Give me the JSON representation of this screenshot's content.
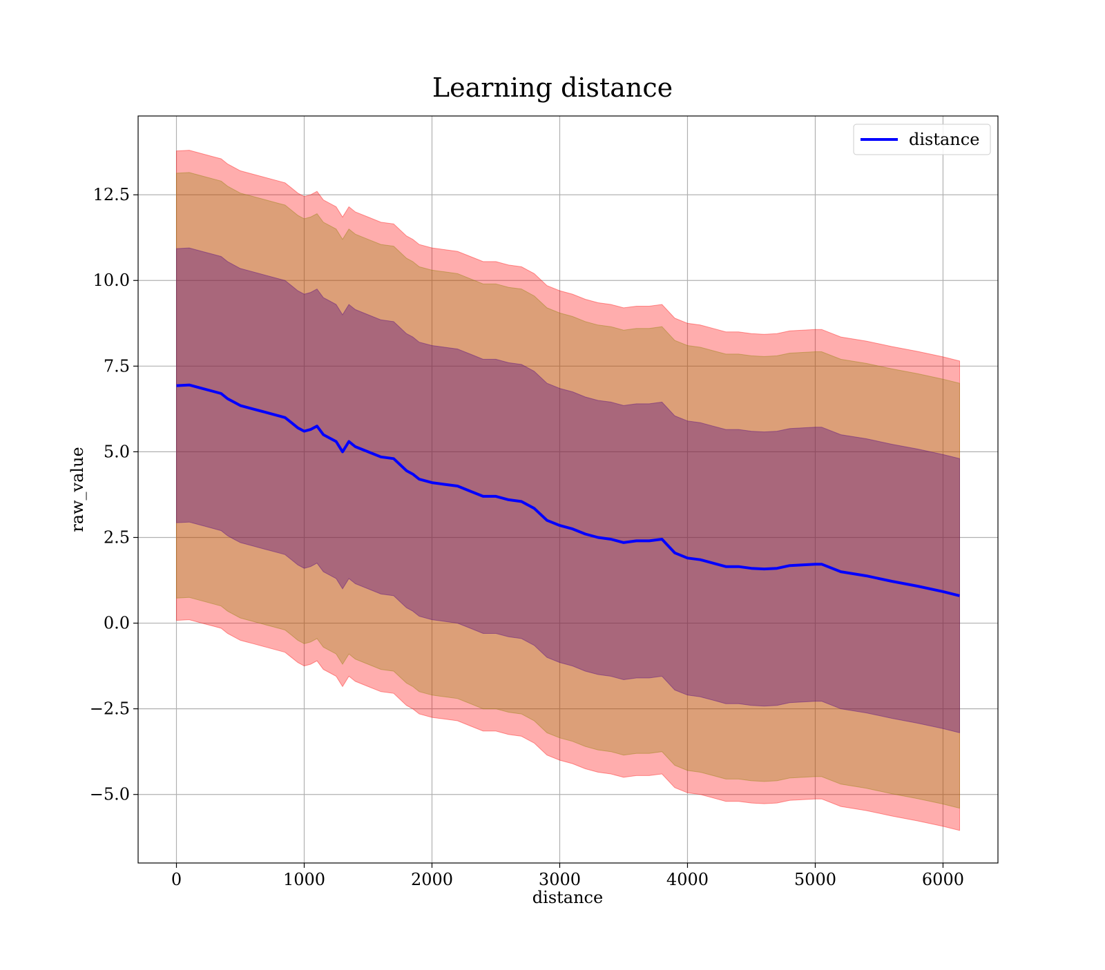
{
  "chart_data": {
    "type": "line",
    "title": "Learning distance",
    "xlabel": "distance",
    "ylabel": "raw_value",
    "xlim": [
      -300,
      6430
    ],
    "ylim": [
      -7.0,
      14.8
    ],
    "xticks": [
      0,
      1000,
      2000,
      3000,
      4000,
      5000,
      6000
    ],
    "xtick_labels": [
      "0",
      "1000",
      "2000",
      "3000",
      "4000",
      "5000",
      "6000"
    ],
    "yticks": [
      -5.0,
      -2.5,
      0.0,
      2.5,
      5.0,
      7.5,
      10.0,
      12.5
    ],
    "ytick_labels": [
      "−5.0",
      "−2.5",
      "0.0",
      "2.5",
      "5.0",
      "7.5",
      "10.0",
      "12.5"
    ],
    "grid": true,
    "legend": {
      "position": "top-right",
      "entries": [
        "distance"
      ]
    },
    "colors": {
      "line": "#0000ff",
      "outer_band": "#ff0000",
      "middle_band": "#8b8000",
      "inner_band": "#4b0082",
      "grid": "#b0b0b0"
    },
    "x": [
      0,
      100,
      150,
      200,
      300,
      350,
      400,
      450,
      500,
      550,
      600,
      700,
      800,
      850,
      900,
      950,
      1000,
      1050,
      1100,
      1150,
      1200,
      1250,
      1300,
      1350,
      1400,
      1500,
      1600,
      1700,
      1800,
      1850,
      1900,
      2000,
      2100,
      2200,
      2300,
      2400,
      2500,
      2600,
      2700,
      2800,
      2900,
      3000,
      3100,
      3200,
      3300,
      3400,
      3500,
      3600,
      3700,
      3800,
      3900,
      4000,
      4100,
      4200,
      4300,
      4400,
      4500,
      4600,
      4700,
      4800,
      4900,
      5000,
      5050,
      5200,
      5400,
      5600,
      5800,
      6000,
      6130
    ],
    "series": [
      {
        "name": "distance",
        "values": [
          6.93,
          6.95,
          6.9,
          6.85,
          6.75,
          6.7,
          6.55,
          6.45,
          6.35,
          6.3,
          6.25,
          6.15,
          6.05,
          6.0,
          5.85,
          5.7,
          5.6,
          5.65,
          5.75,
          5.5,
          5.4,
          5.3,
          5.0,
          5.3,
          5.15,
          5.0,
          4.85,
          4.8,
          4.45,
          4.35,
          4.2,
          4.1,
          4.05,
          4.0,
          3.85,
          3.7,
          3.7,
          3.6,
          3.55,
          3.35,
          3.0,
          2.85,
          2.75,
          2.6,
          2.5,
          2.45,
          2.35,
          2.4,
          2.4,
          2.45,
          2.05,
          1.9,
          1.85,
          1.75,
          1.65,
          1.65,
          1.6,
          1.58,
          1.6,
          1.68,
          1.7,
          1.72,
          1.72,
          1.5,
          1.38,
          1.22,
          1.08,
          0.92,
          0.8
        ]
      }
    ],
    "bands": [
      {
        "band": "outer",
        "half_width": 6.85
      },
      {
        "band": "middle",
        "half_width": 6.2
      },
      {
        "band": "inner",
        "half_width": 4.0
      }
    ]
  }
}
